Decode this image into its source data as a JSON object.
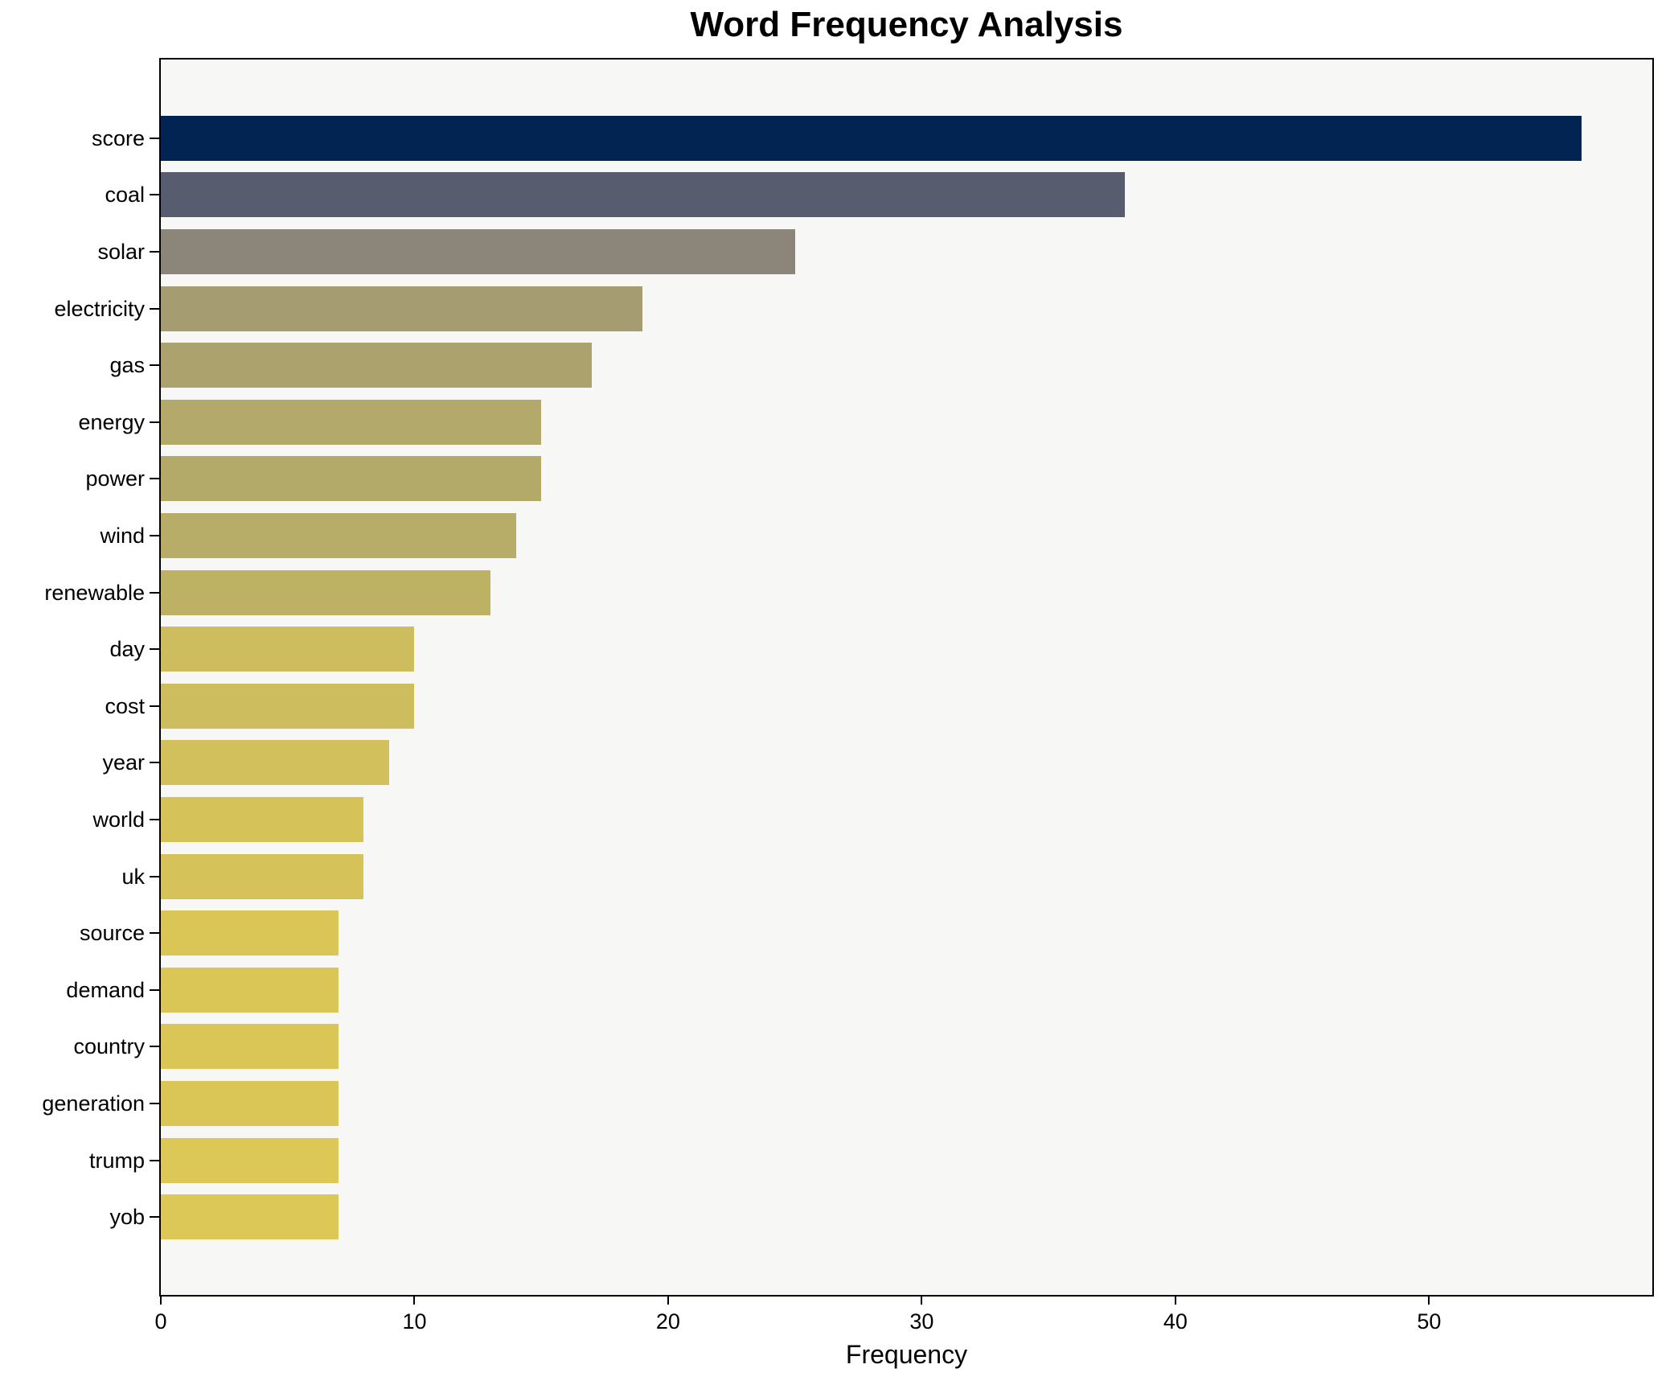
{
  "figure": {
    "background": "#ffffff",
    "plot_background": "#f7f7f5",
    "axis_color": "#000000"
  },
  "chart_data": {
    "type": "bar",
    "orientation": "horizontal",
    "title": "Word Frequency Analysis",
    "xlabel": "Frequency",
    "ylabel": "",
    "categories": [
      "score",
      "coal",
      "solar",
      "electricity",
      "gas",
      "energy",
      "power",
      "wind",
      "renewable",
      "day",
      "cost",
      "year",
      "world",
      "uk",
      "source",
      "demand",
      "country",
      "generation",
      "trump",
      "yob"
    ],
    "values": [
      56,
      38,
      25,
      19,
      17,
      15,
      15,
      14,
      13,
      10,
      10,
      9,
      8,
      8,
      7,
      7,
      7,
      7,
      7,
      7
    ],
    "bar_colors": [
      "#012452",
      "#575d6e",
      "#8b8679",
      "#a59d71",
      "#aca26d",
      "#b2a96b",
      "#b3aa6a",
      "#b7ad68",
      "#bdb164",
      "#cdbd5e",
      "#cdbd5e",
      "#d1c05b",
      "#d5c359",
      "#d5c359",
      "#d9c657",
      "#d9c657",
      "#d9c657",
      "#d9c657",
      "#dbc856",
      "#dcc856"
    ],
    "xlim": [
      0,
      58.8
    ],
    "x_ticks": [
      0,
      10,
      20,
      30,
      40,
      50
    ],
    "grid": false,
    "legend": "none",
    "bar_height_ratio": 0.8
  }
}
